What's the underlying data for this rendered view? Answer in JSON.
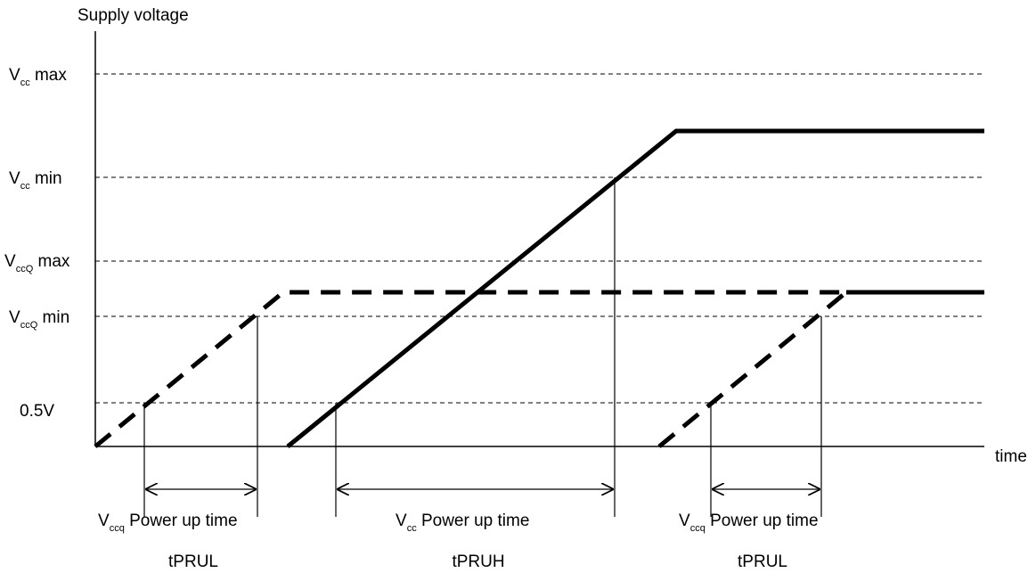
{
  "y_axis_label": "Supply voltage",
  "x_axis_label": "time",
  "levels": {
    "vcc_max": {
      "sym": "V",
      "sub": "cc",
      "suffix": " max"
    },
    "vcc_min": {
      "sym": "V",
      "sub": "cc",
      "suffix": " min"
    },
    "vccq_max": {
      "sym": "V",
      "sub": "ccQ",
      "suffix": " max"
    },
    "vccq_min": {
      "sym": "V",
      "sub": "ccQ",
      "suffix": " min"
    },
    "half_volt": "0.5V"
  },
  "intervals": [
    {
      "sym": "V",
      "sub": "ccq",
      "text": " Power up time",
      "param": "tPRUL"
    },
    {
      "sym": "V",
      "sub": "cc",
      "text": " Power up time",
      "param": "tPRUH"
    },
    {
      "sym": "V",
      "sub": "ccq",
      "text": " Power up time",
      "param": "tPRUL"
    }
  ]
}
